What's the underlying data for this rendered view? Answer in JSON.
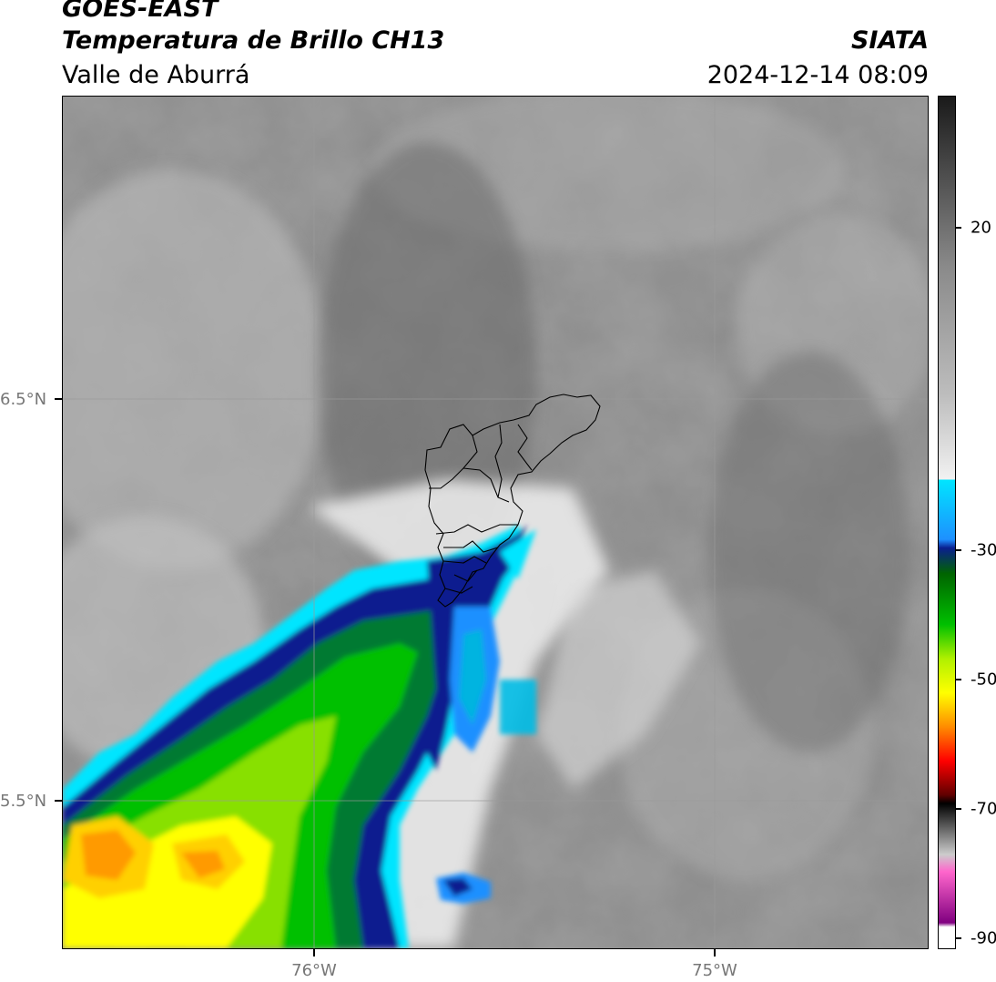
{
  "header": {
    "satellite": "GOES-EAST",
    "product": "Temperatura de Brillo CH13",
    "region": "Valle de Aburrá",
    "agency": "SIATA",
    "datetime": "2024-12-14 08:09"
  },
  "map": {
    "lat_labels": [
      "6.5°N",
      "5.5°N"
    ],
    "lon_labels": [
      "76°W",
      "75°W"
    ],
    "gridlines": true
  },
  "colorbar": {
    "ticks": [
      "20",
      "-30",
      "-50",
      "-70",
      "-90"
    ],
    "colors": {
      "warm_dark": "#1a1a1a",
      "gray": "#8a8a8a",
      "light": "#f2f2f2",
      "cyan": "#00e5ff",
      "blue": "#0a1f8f",
      "green": "#00c000",
      "yellow": "#ffff00",
      "orange": "#ff8c00",
      "red": "#ff0000",
      "black": "#000000",
      "pink": "#ff66cc",
      "purple": "#800080"
    }
  }
}
